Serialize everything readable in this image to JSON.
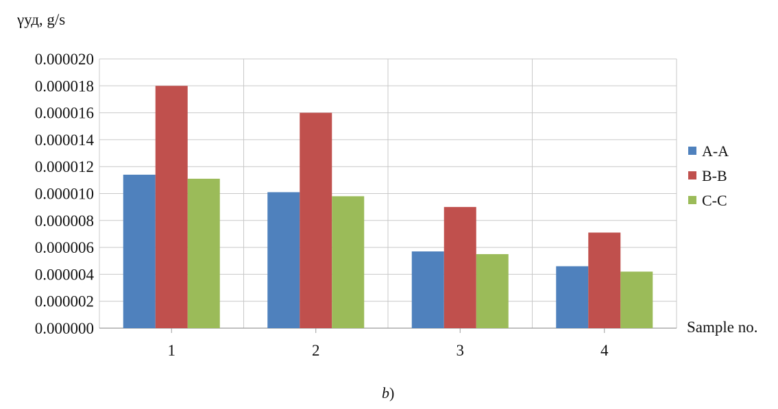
{
  "chart_data": {
    "type": "bar",
    "ylabel": "γуд, g/s",
    "xlabel": "Sample no.",
    "caption_letter": "b",
    "caption_suffix": ")",
    "categories": [
      "1",
      "2",
      "3",
      "4"
    ],
    "ylim": [
      0,
      2e-05
    ],
    "yticks": [
      "0.000000",
      "0.000002",
      "0.000004",
      "0.000006",
      "0.000008",
      "0.000010",
      "0.000012",
      "0.000014",
      "0.000016",
      "0.000018",
      "0.000020"
    ],
    "grid": true,
    "legend_position": "right",
    "series": [
      {
        "name": "A-A",
        "color": "#4f81bd",
        "values": [
          1.14e-05,
          1.01e-05,
          5.7e-06,
          4.6e-06
        ]
      },
      {
        "name": "B-B",
        "color": "#c0504d",
        "values": [
          1.8e-05,
          1.6e-05,
          9e-06,
          7.1e-06
        ]
      },
      {
        "name": "C-C",
        "color": "#9bbb59",
        "values": [
          1.11e-05,
          9.8e-06,
          5.5e-06,
          4.2e-06
        ]
      }
    ]
  }
}
